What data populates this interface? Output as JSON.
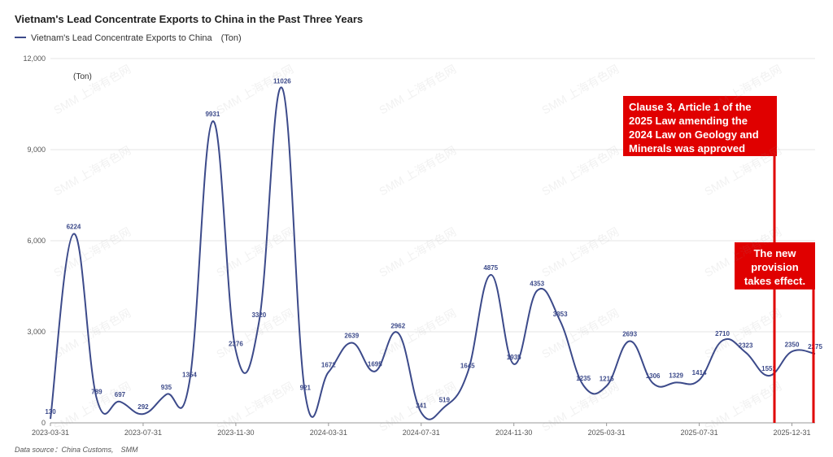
{
  "title": "Vietnam's Lead Concentrate Exports to China in the Past Three Years",
  "legend_label": "Vietnam's Lead Concentrate Exports to China　(Ton)",
  "unit_label": "(Ton)",
  "source": "Data source：China Customs,　SMM",
  "watermark": "SMM 上海有色网",
  "annotations": [
    {
      "text": "Clause 3, Article 1 of the 2025 Law amending the 2024 Law on Geology and Minerals was approved"
    },
    {
      "text": "The new provision takes effect."
    }
  ],
  "colors": {
    "line": "#3c4a8a",
    "annotation": "#e00000"
  },
  "chart_data": {
    "type": "line",
    "series": [
      {
        "name": "Vietnam's Lead Concentrate Exports to China　(Ton)",
        "values": [
          130,
          6224,
          789,
          697,
          292,
          935,
          1354,
          9931,
          2376,
          3320,
          11026,
          921,
          1672,
          2639,
          1695,
          2962,
          341,
          519,
          1645,
          4875,
          1935,
          4353,
          3353,
          1235,
          1215,
          2693,
          1306,
          1329,
          1414,
          2710,
          2323,
          1551,
          2350,
          2275
        ]
      }
    ],
    "x_ticks": [
      "2023-03-31",
      "2023-07-31",
      "2023-11-30",
      "2024-03-31",
      "2024-07-31",
      "2024-11-30",
      "2025-03-31",
      "2025-07-31",
      "2025-12-31"
    ],
    "y_ticks": [
      "0",
      "3,000",
      "6,000",
      "9,000",
      "12,000"
    ],
    "ylim": [
      0,
      12000
    ],
    "grid": true,
    "legend": "top-left"
  }
}
